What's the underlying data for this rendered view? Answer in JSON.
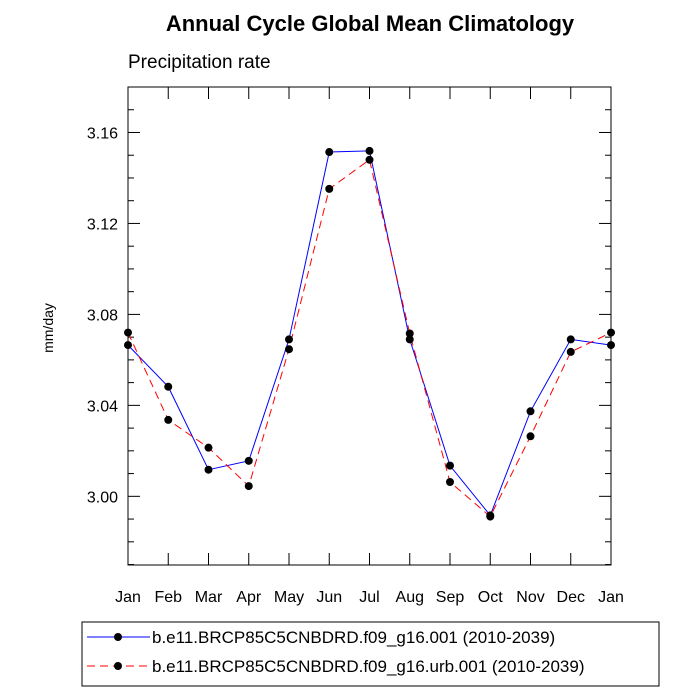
{
  "chart_data": {
    "type": "line",
    "title": "Annual Cycle Global Mean Climatology",
    "subtitle": "Precipitation rate",
    "ylabel": "mm/day",
    "xlabel": "",
    "categories": [
      "Jan",
      "Feb",
      "Mar",
      "Apr",
      "May",
      "Jun",
      "Jul",
      "Aug",
      "Sep",
      "Oct",
      "Nov",
      "Dec",
      "Jan"
    ],
    "ylim": [
      2.9698,
      3.18
    ],
    "yticks": [
      3.0,
      3.04,
      3.08,
      3.12,
      3.16
    ],
    "ytick_labels": [
      "3.00",
      "3.04",
      "3.08",
      "3.12",
      "3.16"
    ],
    "series": [
      {
        "name": "b.e11.BRCP85C5CNBDRD.f09_g16.001 (2010-2039)",
        "color": "#0000ff",
        "dash": "solid",
        "values": [
          3.0665,
          3.0482,
          3.0117,
          3.0156,
          3.069,
          3.1514,
          3.1519,
          3.069,
          3.0135,
          2.9916,
          3.0374,
          3.069,
          3.0665
        ]
      },
      {
        "name": "b.e11.BRCP85C5CNBDRD.f09_g16.urb.001 (2010-2039)",
        "color": "#ff0000",
        "dash": "dashed",
        "values": [
          3.072,
          3.0336,
          3.0214,
          3.0045,
          3.0647,
          3.1352,
          3.148,
          3.0716,
          3.0063,
          2.9911,
          3.0264,
          3.0635,
          3.072
        ]
      }
    ],
    "grid": false,
    "legend_position": "bottom"
  }
}
